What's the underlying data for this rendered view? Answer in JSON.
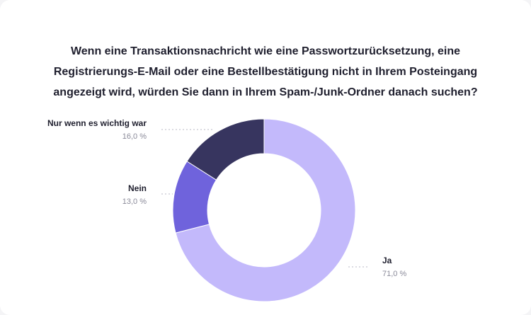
{
  "chart_data": {
    "type": "pie",
    "title_lines": [
      "Wenn eine Transaktionsnachricht wie eine Passwortzurücksetzung, eine",
      "Registrierungs-E-Mail oder eine Bestellbestätigung nicht in Ihrem Posteingang",
      "angezeigt wird, würden Sie dann in Ihrem Spam-/Junk-Ordner danach suchen?"
    ],
    "slices": [
      {
        "label": "Ja",
        "value": 71.0,
        "value_label": "71,0 %",
        "color": "#c3b9fb"
      },
      {
        "label": "Nein",
        "value": 13.0,
        "value_label": "13,0 %",
        "color": "#6f63dc"
      },
      {
        "label": "Nur wenn es wichtig war",
        "value": 16.0,
        "value_label": "16,0 %",
        "color": "#37355f"
      }
    ],
    "donut": true,
    "legend": "none"
  }
}
